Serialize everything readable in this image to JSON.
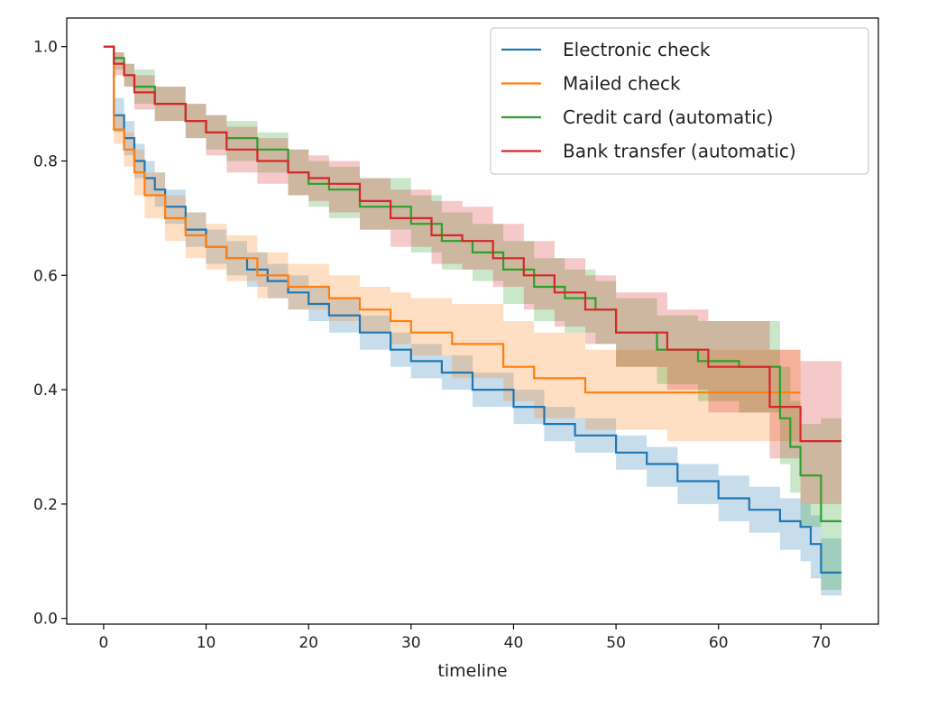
{
  "chart_data": {
    "type": "line",
    "title": "",
    "xlabel": "timeline",
    "ylabel": "",
    "xlim": [
      -3.6,
      75.6
    ],
    "ylim": [
      -0.01,
      1.05
    ],
    "xticks": [
      0,
      10,
      20,
      30,
      40,
      50,
      60,
      70
    ],
    "xtick_labels": [
      "0",
      "10",
      "20",
      "30",
      "40",
      "50",
      "60",
      "70"
    ],
    "yticks": [
      0.0,
      0.2,
      0.4,
      0.6,
      0.8,
      1.0
    ],
    "ytick_labels": [
      "0.0",
      "0.2",
      "0.4",
      "0.6",
      "0.8",
      "1.0"
    ],
    "grid": false,
    "legend_position": "top-right",
    "step": true,
    "series": [
      {
        "name": "Electronic check",
        "color": "#1f77b4",
        "x": [
          0,
          1,
          2,
          3,
          4,
          5,
          6,
          8,
          10,
          12,
          14,
          16,
          18,
          20,
          22,
          25,
          28,
          30,
          33,
          36,
          40,
          43,
          46,
          50,
          53,
          56,
          60,
          63,
          66,
          68,
          69,
          70,
          72
        ],
        "y": [
          1.0,
          0.88,
          0.84,
          0.8,
          0.77,
          0.75,
          0.72,
          0.68,
          0.65,
          0.63,
          0.61,
          0.59,
          0.57,
          0.55,
          0.53,
          0.5,
          0.47,
          0.45,
          0.43,
          0.4,
          0.37,
          0.34,
          0.32,
          0.29,
          0.27,
          0.24,
          0.21,
          0.19,
          0.17,
          0.16,
          0.13,
          0.08,
          0.08
        ],
        "ci_lower": [
          1.0,
          0.85,
          0.81,
          0.77,
          0.74,
          0.72,
          0.69,
          0.65,
          0.62,
          0.6,
          0.58,
          0.56,
          0.54,
          0.52,
          0.5,
          0.47,
          0.44,
          0.42,
          0.4,
          0.37,
          0.34,
          0.31,
          0.29,
          0.26,
          0.23,
          0.2,
          0.17,
          0.15,
          0.12,
          0.1,
          0.07,
          0.04,
          0.04
        ],
        "ci_upper": [
          1.0,
          0.91,
          0.87,
          0.83,
          0.8,
          0.78,
          0.75,
          0.71,
          0.68,
          0.66,
          0.64,
          0.62,
          0.6,
          0.58,
          0.56,
          0.53,
          0.5,
          0.48,
          0.46,
          0.43,
          0.4,
          0.37,
          0.35,
          0.32,
          0.3,
          0.27,
          0.25,
          0.23,
          0.21,
          0.2,
          0.18,
          0.14,
          0.14
        ]
      },
      {
        "name": "Mailed check",
        "color": "#ff7f0e",
        "x": [
          0,
          1,
          2,
          3,
          4,
          6,
          8,
          10,
          12,
          15,
          18,
          22,
          25,
          28,
          30,
          34,
          39,
          42,
          47,
          55,
          68
        ],
        "y": [
          1.0,
          0.855,
          0.82,
          0.78,
          0.74,
          0.7,
          0.67,
          0.65,
          0.63,
          0.6,
          0.58,
          0.56,
          0.54,
          0.52,
          0.5,
          0.48,
          0.44,
          0.42,
          0.395,
          0.395,
          0.395
        ],
        "ci_lower": [
          1.0,
          0.83,
          0.79,
          0.74,
          0.7,
          0.66,
          0.63,
          0.61,
          0.59,
          0.56,
          0.54,
          0.52,
          0.5,
          0.48,
          0.46,
          0.42,
          0.38,
          0.35,
          0.33,
          0.31,
          0.31
        ],
        "ci_upper": [
          1.0,
          0.88,
          0.85,
          0.82,
          0.78,
          0.74,
          0.71,
          0.69,
          0.67,
          0.64,
          0.62,
          0.6,
          0.58,
          0.57,
          0.56,
          0.55,
          0.52,
          0.5,
          0.47,
          0.47,
          0.47
        ]
      },
      {
        "name": "Credit card (automatic)",
        "color": "#2ca02c",
        "x": [
          0,
          1,
          2,
          3,
          5,
          8,
          10,
          12,
          15,
          18,
          20,
          22,
          25,
          30,
          33,
          36,
          39,
          42,
          45,
          48,
          50,
          54,
          58,
          62,
          66,
          67,
          68,
          70,
          72
        ],
        "y": [
          1.0,
          0.98,
          0.95,
          0.93,
          0.9,
          0.87,
          0.85,
          0.84,
          0.82,
          0.78,
          0.76,
          0.75,
          0.72,
          0.69,
          0.66,
          0.64,
          0.61,
          0.58,
          0.56,
          0.54,
          0.5,
          0.47,
          0.45,
          0.44,
          0.35,
          0.3,
          0.25,
          0.17,
          0.17
        ],
        "ci_lower": [
          1.0,
          0.96,
          0.93,
          0.9,
          0.87,
          0.84,
          0.82,
          0.8,
          0.78,
          0.74,
          0.72,
          0.7,
          0.68,
          0.64,
          0.61,
          0.59,
          0.55,
          0.52,
          0.5,
          0.48,
          0.44,
          0.41,
          0.38,
          0.36,
          0.27,
          0.22,
          0.16,
          0.05,
          0.05
        ],
        "ci_upper": [
          1.0,
          0.99,
          0.97,
          0.96,
          0.93,
          0.9,
          0.88,
          0.87,
          0.85,
          0.82,
          0.8,
          0.79,
          0.77,
          0.74,
          0.71,
          0.69,
          0.66,
          0.63,
          0.61,
          0.59,
          0.56,
          0.53,
          0.52,
          0.52,
          0.44,
          0.38,
          0.34,
          0.35,
          0.35
        ]
      },
      {
        "name": "Bank transfer (automatic)",
        "color": "#d62728",
        "x": [
          0,
          1,
          2,
          3,
          5,
          8,
          10,
          12,
          15,
          18,
          20,
          22,
          25,
          28,
          32,
          35,
          38,
          41,
          44,
          47,
          50,
          55,
          59,
          65,
          68,
          72
        ],
        "y": [
          1.0,
          0.97,
          0.95,
          0.92,
          0.9,
          0.87,
          0.85,
          0.82,
          0.8,
          0.78,
          0.77,
          0.76,
          0.73,
          0.7,
          0.67,
          0.66,
          0.63,
          0.6,
          0.57,
          0.54,
          0.5,
          0.47,
          0.44,
          0.37,
          0.31,
          0.31
        ],
        "ci_lower": [
          1.0,
          0.95,
          0.93,
          0.89,
          0.87,
          0.84,
          0.81,
          0.78,
          0.76,
          0.74,
          0.73,
          0.71,
          0.68,
          0.65,
          0.62,
          0.61,
          0.58,
          0.54,
          0.51,
          0.48,
          0.44,
          0.4,
          0.36,
          0.28,
          0.2,
          0.2
        ],
        "ci_upper": [
          1.0,
          0.99,
          0.97,
          0.95,
          0.93,
          0.9,
          0.88,
          0.86,
          0.84,
          0.82,
          0.81,
          0.8,
          0.77,
          0.75,
          0.73,
          0.72,
          0.69,
          0.66,
          0.63,
          0.6,
          0.57,
          0.54,
          0.52,
          0.47,
          0.45,
          0.45
        ]
      }
    ]
  }
}
